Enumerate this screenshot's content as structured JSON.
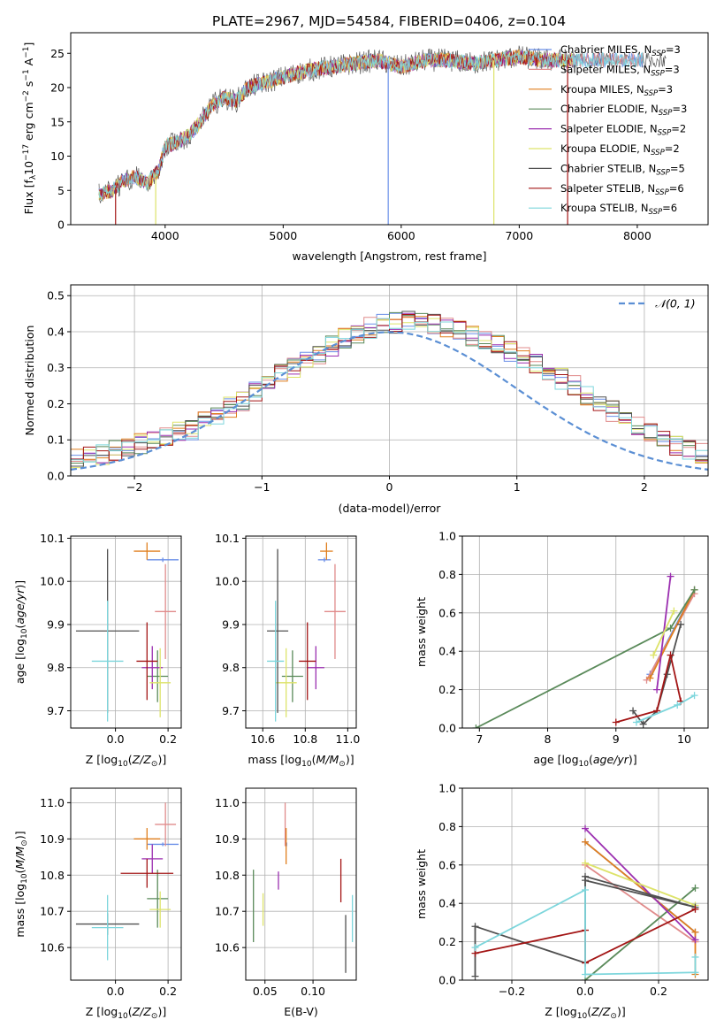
{
  "figure": {
    "title": "PLATE=2967, MJD=54584, FIBERID=0406, z=0.104"
  },
  "colors": {
    "Chabrier MILES": "#6a8fe8",
    "Salpeter MILES": "#e08b8b",
    "Kroupa MILES": "#e07f1e",
    "Chabrier ELODIE": "#5a8a5a",
    "Salpeter ELODIE": "#9b2fb0",
    "Kroupa ELODIE": "#dde36a",
    "Chabrier STELIB": "#505050",
    "Salpeter STELIB": "#a31515",
    "Kroupa STELIB": "#7dd6dc",
    "normal_curve": "#5b8fd4",
    "grid": "#b0b0b0"
  },
  "chart_data": [
    {
      "id": "spectrum",
      "type": "line",
      "title": "PLATE=2967, MJD=54584, FIBERID=0406, z=0.104",
      "xlabel": "wavelength [Angstrom, rest frame]",
      "ylabel": "Flux [f_λ 10^-17 erg cm^-2 s^-1 A^-1]",
      "xlim": [
        3200,
        8600
      ],
      "ylim": [
        0,
        28
      ],
      "xticks": [
        4000,
        5000,
        6000,
        7000,
        8000
      ],
      "yticks": [
        0,
        5,
        10,
        15,
        20,
        25
      ],
      "grid": false,
      "legend_position": "right",
      "continuum_points": {
        "x": [
          3450,
          3550,
          3650,
          3750,
          3850,
          3950,
          4000,
          4100,
          4200,
          4300,
          4400,
          4500,
          4600,
          4700,
          4800,
          4900,
          5000,
          5100,
          5200,
          5400,
          5600,
          5800,
          6000,
          6200,
          6400,
          6600,
          6800,
          7000,
          7200,
          7400
        ],
        "y": [
          4.5,
          5.0,
          6.5,
          7.0,
          6.0,
          8.0,
          11.5,
          12.0,
          13.0,
          15.0,
          17.5,
          18.5,
          18.0,
          20.0,
          20.5,
          21.0,
          21.5,
          22.0,
          22.5,
          23.0,
          23.5,
          24.0,
          23.0,
          24.0,
          24.0,
          23.5,
          24.0,
          24.5,
          24.0,
          24.0
        ]
      },
      "series": [
        {
          "name": "Chabrier MILES, N_SSP=3",
          "label": "Chabrier MILES, N",
          "nssp": "3"
        },
        {
          "name": "Salpeter MILES, N_SSP=3",
          "label": "Salpeter MILES, N",
          "nssp": "3"
        },
        {
          "name": "Kroupa MILES, N_SSP=3",
          "label": "Kroupa MILES, N",
          "nssp": "3"
        },
        {
          "name": "Chabrier ELODIE, N_SSP=3",
          "label": "Chabrier ELODIE, N",
          "nssp": "3"
        },
        {
          "name": "Salpeter ELODIE, N_SSP=2",
          "label": "Salpeter ELODIE, N",
          "nssp": "2"
        },
        {
          "name": "Kroupa ELODIE, N_SSP=2",
          "label": "Kroupa ELODIE, N",
          "nssp": "2"
        },
        {
          "name": "Chabrier STELIB, N_SSP=5",
          "label": "Chabrier STELIB, N",
          "nssp": "5"
        },
        {
          "name": "Salpeter STELIB, N_SSP=6",
          "label": "Salpeter STELIB, N",
          "nssp": "6"
        },
        {
          "name": "Kroupa STELIB, N_SSP=6",
          "label": "Kroupa STELIB, N",
          "nssp": "6"
        }
      ],
      "legend_subscript": "SSP"
    },
    {
      "id": "residuals",
      "type": "histogram",
      "xlabel": "(data-model)/error",
      "ylabel": "Normed distribution",
      "xlim": [
        -2.5,
        2.5
      ],
      "ylim": [
        0,
        0.53
      ],
      "xticks": [
        -2,
        -1,
        0,
        1,
        2
      ],
      "yticks": [
        0.0,
        0.1,
        0.2,
        0.3,
        0.4,
        0.5
      ],
      "grid": true,
      "legend": "𝒩(0, 1)",
      "legend_position": "top-right",
      "bin_width": 0.1,
      "base_heights": [
        0.03,
        0.031,
        0.035,
        0.04,
        0.045,
        0.05,
        0.055,
        0.06,
        0.07,
        0.08,
        0.09,
        0.1,
        0.11,
        0.12,
        0.13,
        0.15,
        0.17,
        0.19,
        0.21,
        0.235,
        0.26,
        0.285,
        0.3,
        0.32,
        0.34,
        0.36,
        0.38,
        0.395,
        0.41,
        0.42,
        0.425,
        0.43,
        0.43,
        0.42,
        0.41,
        0.4,
        0.39,
        0.375,
        0.36,
        0.345,
        0.33,
        0.31,
        0.29,
        0.27,
        0.25,
        0.225,
        0.2,
        0.18,
        0.16,
        0.14,
        0.12,
        0.1,
        0.085,
        0.075,
        0.065,
        0.055,
        0.045,
        0.04,
        0.035,
        0.03
      ]
    },
    {
      "id": "age_vs_Z",
      "type": "scatter",
      "xlabel": "Z [log10(Z/Z_⊙)]",
      "ylabel": "age  [log10(age/yr)]",
      "xlim": [
        -0.17,
        0.25
      ],
      "ylim": [
        9.66,
        10.105
      ],
      "xticks": [
        0.0,
        0.2
      ],
      "yticks": [
        9.7,
        9.8,
        9.9,
        10.0,
        10.1
      ],
      "grid": true,
      "points": [
        {
          "series": "Chabrier MILES",
          "x": 0.18,
          "y": 10.05,
          "xerr": 0.06,
          "yerr": 0.005
        },
        {
          "series": "Salpeter MILES",
          "x": 0.19,
          "y": 9.93,
          "xerr": 0.04,
          "yerr": 0.11
        },
        {
          "series": "Kroupa MILES",
          "x": 0.12,
          "y": 10.07,
          "xerr": 0.05,
          "yerr": 0.02
        },
        {
          "series": "Chabrier ELODIE",
          "x": 0.16,
          "y": 9.78,
          "xerr": 0.04,
          "yerr": 0.06
        },
        {
          "series": "Salpeter ELODIE",
          "x": 0.14,
          "y": 9.8,
          "xerr": 0.04,
          "yerr": 0.05
        },
        {
          "series": "Kroupa ELODIE",
          "x": 0.17,
          "y": 9.765,
          "xerr": 0.04,
          "yerr": 0.08
        },
        {
          "series": "Chabrier STELIB",
          "x": -0.03,
          "y": 9.885,
          "xerr": 0.12,
          "yerr": 0.19
        },
        {
          "series": "Salpeter STELIB",
          "x": 0.12,
          "y": 9.815,
          "xerr": 0.04,
          "yerr": 0.09
        },
        {
          "series": "Kroupa STELIB",
          "x": -0.03,
          "y": 9.815,
          "xerr": 0.06,
          "yerr": 0.14
        }
      ]
    },
    {
      "id": "age_vs_mass",
      "type": "scatter",
      "xlabel": "mass [log10(M/M_⊙)]",
      "ylabel": "",
      "xlim": [
        10.52,
        11.04
      ],
      "ylim": [
        9.66,
        10.105
      ],
      "xticks": [
        10.6,
        10.8,
        11.0
      ],
      "yticks": [
        9.7,
        9.8,
        9.9,
        10.0,
        10.1
      ],
      "grid": true,
      "points": [
        {
          "series": "Chabrier MILES",
          "x": 10.89,
          "y": 10.05,
          "xerr": 0.03,
          "yerr": 0.005
        },
        {
          "series": "Salpeter MILES",
          "x": 10.94,
          "y": 9.93,
          "xerr": 0.05,
          "yerr": 0.11
        },
        {
          "series": "Kroupa MILES",
          "x": 10.9,
          "y": 10.07,
          "xerr": 0.03,
          "yerr": 0.02
        },
        {
          "series": "Chabrier ELODIE",
          "x": 10.74,
          "y": 9.78,
          "xerr": 0.05,
          "yerr": 0.06
        },
        {
          "series": "Salpeter ELODIE",
          "x": 10.85,
          "y": 9.8,
          "xerr": 0.04,
          "yerr": 0.05
        },
        {
          "series": "Kroupa ELODIE",
          "x": 10.71,
          "y": 9.765,
          "xerr": 0.05,
          "yerr": 0.08
        },
        {
          "series": "Chabrier STELIB",
          "x": 10.67,
          "y": 9.885,
          "xerr": 0.05,
          "yerr": 0.19
        },
        {
          "series": "Salpeter STELIB",
          "x": 10.81,
          "y": 9.815,
          "xerr": 0.04,
          "yerr": 0.09
        },
        {
          "series": "Kroupa STELIB",
          "x": 10.66,
          "y": 9.815,
          "xerr": 0.04,
          "yerr": 0.14
        }
      ]
    },
    {
      "id": "massweight_vs_age",
      "type": "line",
      "xlabel": "age  [log10(age/yr)]",
      "ylabel": "mass weight",
      "xlim": [
        6.75,
        10.35
      ],
      "ylim": [
        0,
        1
      ],
      "xticks": [
        7,
        8,
        9,
        10
      ],
      "yticks": [
        0.0,
        0.2,
        0.4,
        0.6,
        0.8,
        1.0
      ],
      "grid": true,
      "series": [
        {
          "name": "Chabrier MILES",
          "x": [
            9.5,
            10.15
          ],
          "y": [
            0.28,
            0.72
          ]
        },
        {
          "name": "Salpeter MILES",
          "x": [
            9.45,
            10.15
          ],
          "y": [
            0.25,
            0.7
          ]
        },
        {
          "name": "Kroupa MILES",
          "x": [
            9.5,
            10.15
          ],
          "y": [
            0.26,
            0.72
          ]
        },
        {
          "name": "Chabrier ELODIE",
          "x": [
            6.95,
            9.8,
            10.15
          ],
          "y": [
            0.0,
            0.52,
            0.72
          ]
        },
        {
          "name": "Salpeter ELODIE",
          "x": [
            9.6,
            9.8
          ],
          "y": [
            0.2,
            0.79
          ]
        },
        {
          "name": "Kroupa ELODIE",
          "x": [
            9.55,
            9.85
          ],
          "y": [
            0.38,
            0.61
          ]
        },
        {
          "name": "Chabrier STELIB",
          "x": [
            9.25,
            9.4,
            9.6,
            9.75,
            9.95
          ],
          "y": [
            0.09,
            0.02,
            0.09,
            0.28,
            0.54
          ]
        },
        {
          "name": "Salpeter STELIB",
          "x": [
            9.0,
            9.6,
            9.8,
            9.95
          ],
          "y": [
            0.03,
            0.09,
            0.38,
            0.14
          ]
        },
        {
          "name": "Kroupa STELIB",
          "x": [
            9.3,
            9.9,
            10.15
          ],
          "y": [
            0.03,
            0.12,
            0.17
          ]
        }
      ]
    },
    {
      "id": "mass_vs_Z",
      "type": "scatter",
      "xlabel": "Z [log10(Z/Z_⊙)]",
      "ylabel": "mass [log10(M/M_⊙)]",
      "xlim": [
        -0.17,
        0.25
      ],
      "ylim": [
        10.51,
        11.04
      ],
      "xticks": [
        0.0,
        0.2
      ],
      "yticks": [
        10.6,
        10.7,
        10.8,
        10.9,
        11.0
      ],
      "grid": true,
      "points": [
        {
          "series": "Chabrier MILES",
          "x": 0.18,
          "y": 10.885,
          "xerr": 0.06,
          "yerr": 0.005
        },
        {
          "series": "Salpeter MILES",
          "x": 0.19,
          "y": 10.94,
          "xerr": 0.04,
          "yerr": 0.06
        },
        {
          "series": "Kroupa MILES",
          "x": 0.12,
          "y": 10.9,
          "xerr": 0.05,
          "yerr": 0.03
        },
        {
          "series": "Chabrier ELODIE",
          "x": 0.16,
          "y": 10.735,
          "xerr": 0.04,
          "yerr": 0.08
        },
        {
          "series": "Salpeter ELODIE",
          "x": 0.14,
          "y": 10.845,
          "xerr": 0.04,
          "yerr": 0.04
        },
        {
          "series": "Kroupa ELODIE",
          "x": 0.17,
          "y": 10.705,
          "xerr": 0.04,
          "yerr": 0.05
        },
        {
          "series": "Chabrier STELIB",
          "x": -0.03,
          "y": 10.665,
          "xerr": 0.12,
          "yerr": 0.03
        },
        {
          "series": "Salpeter STELIB",
          "x": 0.12,
          "y": 10.805,
          "xerr": 0.1,
          "yerr": 0.04
        },
        {
          "series": "Kroupa STELIB",
          "x": -0.03,
          "y": 10.655,
          "xerr": 0.06,
          "yerr": 0.09
        }
      ]
    },
    {
      "id": "mass_vs_EBV",
      "type": "scatter",
      "xlabel": "E(B-V)",
      "ylabel": "",
      "xlim": [
        0.03,
        0.145
      ],
      "ylim": [
        10.51,
        11.04
      ],
      "xticks": [
        0.05,
        0.1
      ],
      "yticks": [
        10.6,
        10.7,
        10.8,
        10.9,
        11.0
      ],
      "grid": true,
      "points": [
        {
          "series": "Chabrier MILES",
          "x": 0.0725,
          "y": 10.885,
          "yerr": 0.005
        },
        {
          "series": "Salpeter MILES",
          "x": 0.071,
          "y": 10.94,
          "yerr": 0.06
        },
        {
          "series": "Kroupa MILES",
          "x": 0.072,
          "y": 10.88,
          "yerr": 0.05
        },
        {
          "series": "Chabrier ELODIE",
          "x": 0.038,
          "y": 10.715,
          "yerr": 0.1
        },
        {
          "series": "Salpeter ELODIE",
          "x": 0.064,
          "y": 10.785,
          "yerr": 0.025
        },
        {
          "series": "Kroupa ELODIE",
          "x": 0.048,
          "y": 10.705,
          "yerr": 0.045
        },
        {
          "series": "Chabrier STELIB",
          "x": 0.134,
          "y": 10.61,
          "yerr": 0.08
        },
        {
          "series": "Salpeter STELIB",
          "x": 0.129,
          "y": 10.785,
          "yerr": 0.06
        },
        {
          "series": "Kroupa STELIB",
          "x": 0.141,
          "y": 10.68,
          "yerr": 0.065
        }
      ]
    },
    {
      "id": "massweight_vs_Z",
      "type": "line",
      "xlabel": "Z [log10(Z/Z_⊙)]",
      "ylabel": "mass weight",
      "xlim": [
        -0.335,
        0.335
      ],
      "ylim": [
        0,
        1
      ],
      "xticks": [
        -0.2,
        0.0,
        0.2
      ],
      "yticks": [
        0.0,
        0.2,
        0.4,
        0.6,
        0.8,
        1.0
      ],
      "grid": true,
      "series": [
        {
          "name": "Chabrier MILES",
          "x": [
            0.0,
            0.3
          ],
          "y": [
            0.72,
            0.25
          ]
        },
        {
          "name": "Salpeter MILES",
          "x": [
            0.0,
            0.3
          ],
          "y": [
            0.6,
            0.2
          ]
        },
        {
          "name": "Kroupa MILES",
          "x": [
            0.0,
            0.3,
            0.3
          ],
          "y": [
            0.72,
            0.25,
            0.03
          ]
        },
        {
          "name": "Chabrier ELODIE",
          "x": [
            0.0,
            0.3
          ],
          "y": [
            0.0,
            0.48
          ]
        },
        {
          "name": "Salpeter ELODIE",
          "x": [
            0.0,
            0.3
          ],
          "y": [
            0.79,
            0.21
          ]
        },
        {
          "name": "Kroupa ELODIE",
          "x": [
            0.0,
            0.3
          ],
          "y": [
            0.61,
            0.39
          ]
        },
        {
          "name": "Chabrier STELIB",
          "x": [
            -0.3,
            -0.3,
            0.0,
            0.0,
            0.3,
            0.0
          ],
          "y": [
            0.02,
            0.28,
            0.09,
            0.54,
            0.38,
            0.52
          ]
        },
        {
          "name": "Salpeter STELIB",
          "x": [
            -0.3,
            0.0,
            0.0,
            0.3
          ],
          "y": [
            0.14,
            0.26,
            0.09,
            0.37
          ]
        },
        {
          "name": "Kroupa STELIB",
          "x": [
            -0.3,
            0.0,
            0.0,
            0.3,
            0.3
          ],
          "y": [
            0.17,
            0.47,
            0.03,
            0.04,
            0.12
          ]
        }
      ]
    }
  ]
}
